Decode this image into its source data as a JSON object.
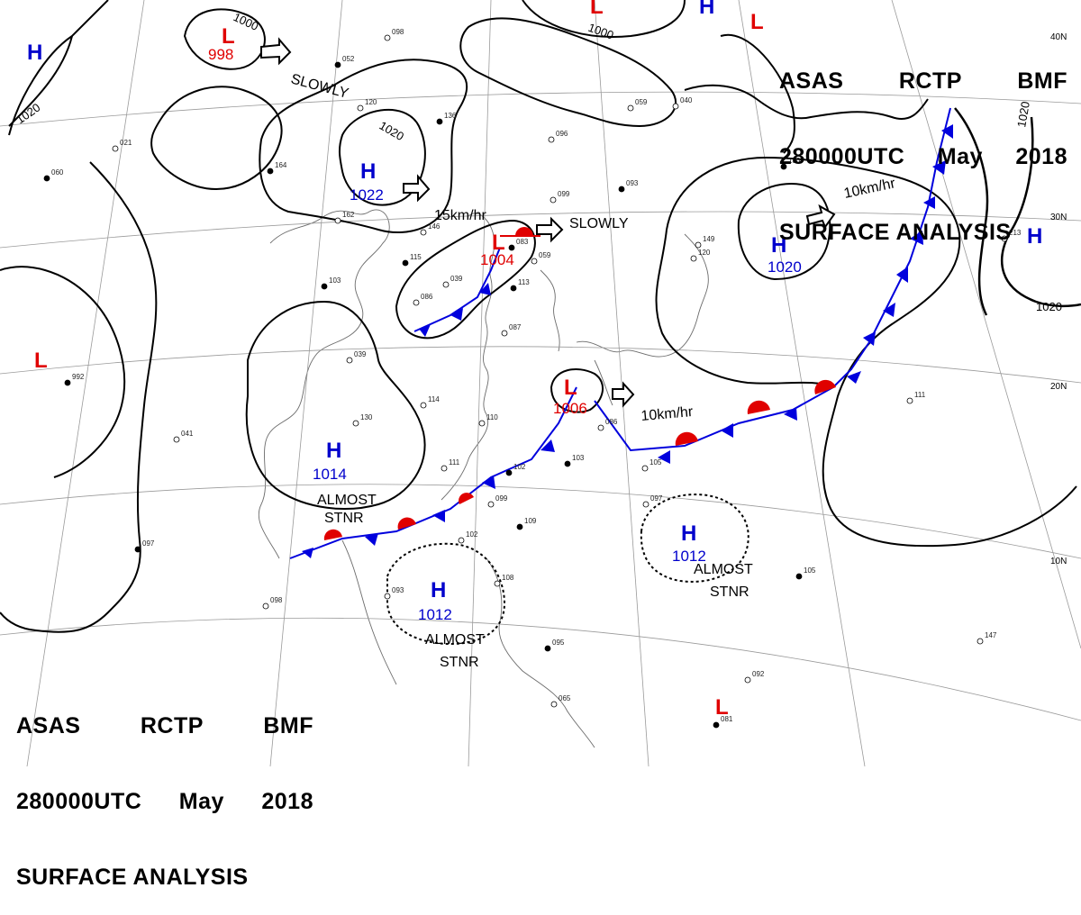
{
  "header": {
    "agency": "ASAS",
    "station": "RCTP",
    "office": "BMF",
    "time": "280000UTC",
    "month": "May",
    "year": "2018",
    "product": "SURFACE ANALYSIS"
  },
  "colors": {
    "high": "#0000cc",
    "low": "#e00000",
    "cold_front": "#0000dd",
    "warm_front": "#e00000",
    "isobar": "#000000",
    "grid": "#999999"
  },
  "latitude_labels": [
    "40N",
    "30N",
    "20N",
    "10N"
  ],
  "systems": [
    {
      "type": "H",
      "pressure": "1022"
    },
    {
      "type": "H",
      "pressure": "1020"
    },
    {
      "type": "H",
      "pressure": "1014"
    },
    {
      "type": "H",
      "pressure": "1012"
    },
    {
      "type": "H",
      "pressure": "1012"
    },
    {
      "type": "H",
      "pressure": ""
    },
    {
      "type": "H",
      "pressure": ""
    },
    {
      "type": "H",
      "pressure": ""
    },
    {
      "type": "L",
      "pressure": "998"
    },
    {
      "type": "L",
      "pressure": "1004"
    },
    {
      "type": "L",
      "pressure": "1006"
    },
    {
      "type": "L",
      "pressure": ""
    },
    {
      "type": "L",
      "pressure": ""
    },
    {
      "type": "L",
      "pressure": ""
    },
    {
      "type": "L",
      "pressure": ""
    }
  ],
  "isobar_labels": [
    "1000",
    "1020",
    "1020",
    "1020",
    "1020",
    "1000"
  ],
  "motion_labels": [
    "SLOWLY",
    "15km/hr",
    "SLOWLY",
    "10km/hr",
    "10km/hr"
  ],
  "stationary_notes": [
    {
      "line1": "ALMOST",
      "line2": "STNR"
    },
    {
      "line1": "ALMOST",
      "line2": "STNR"
    },
    {
      "line1": "ALMOST",
      "line2": "STNR"
    }
  ],
  "station_readings": [
    "052",
    "098",
    "120",
    "164",
    "162",
    "146",
    "115",
    "086",
    "039",
    "083",
    "059",
    "099",
    "136",
    "096",
    "087",
    "093",
    "059",
    "040",
    "180",
    "149",
    "120",
    "113",
    "114",
    "110",
    "102",
    "111",
    "099",
    "109",
    "102",
    "105",
    "103",
    "086",
    "097",
    "105",
    "111",
    "147",
    "081",
    "092",
    "098",
    "097",
    "041",
    "065",
    "095",
    "108",
    "093",
    "103",
    "039",
    "130",
    "060",
    "021",
    "213",
    "992"
  ]
}
